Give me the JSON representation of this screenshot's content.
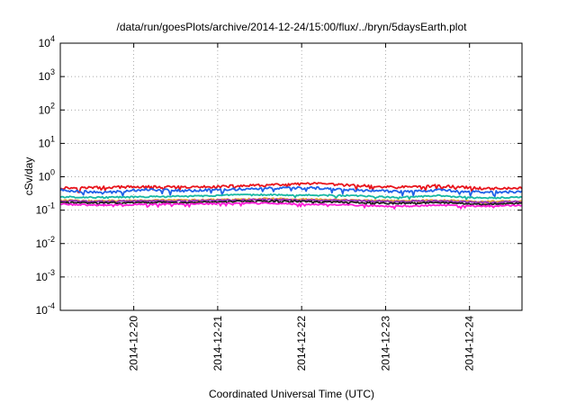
{
  "chart_data": {
    "type": "line",
    "title": "/data/run/goesPlots/archive/2014-12-24/15:00/flux/../bryn/5daysEarth.plot",
    "xlabel": "Coordinated Universal Time (UTC)",
    "ylabel": "cSv/day",
    "yscale": "log",
    "ylim": [
      0.0001,
      10000
    ],
    "y_ticks": [
      {
        "value": 0.0001,
        "base": "10",
        "exp": "-4"
      },
      {
        "value": 0.001,
        "base": "10",
        "exp": "-3"
      },
      {
        "value": 0.01,
        "base": "10",
        "exp": "-2"
      },
      {
        "value": 0.1,
        "base": "10",
        "exp": "-1"
      },
      {
        "value": 1,
        "base": "10",
        "exp": "0"
      },
      {
        "value": 10,
        "base": "10",
        "exp": "1"
      },
      {
        "value": 100,
        "base": "10",
        "exp": "2"
      },
      {
        "value": 1000,
        "base": "10",
        "exp": "3"
      },
      {
        "value": 10000,
        "base": "10",
        "exp": "4"
      }
    ],
    "xlim": [
      "2014-12-19T03:00",
      "2014-12-24T15:00"
    ],
    "x_ticks": [
      {
        "value": "2014-12-20T00:00",
        "label": "2014-12-20"
      },
      {
        "value": "2014-12-21T00:00",
        "label": "2014-12-21"
      },
      {
        "value": "2014-12-22T00:00",
        "label": "2014-12-22"
      },
      {
        "value": "2014-12-23T00:00",
        "label": "2014-12-23"
      },
      {
        "value": "2014-12-24T00:00",
        "label": "2014-12-24"
      }
    ],
    "grid": true,
    "legend": "none",
    "x": [
      "2014-12-19T03:00",
      "2014-12-19T15:00",
      "2014-12-20T03:00",
      "2014-12-20T15:00",
      "2014-12-21T03:00",
      "2014-12-21T15:00",
      "2014-12-22T03:00",
      "2014-12-22T15:00",
      "2014-12-23T03:00",
      "2014-12-23T15:00",
      "2014-12-24T03:00",
      "2014-12-24T15:00"
    ],
    "series": [
      {
        "color": "#e8141c",
        "values": [
          0.46,
          0.48,
          0.5,
          0.48,
          0.52,
          0.56,
          0.62,
          0.55,
          0.48,
          0.54,
          0.45,
          0.45
        ]
      },
      {
        "color": "#1f62e8",
        "values": [
          0.4,
          0.33,
          0.42,
          0.38,
          0.42,
          0.45,
          0.46,
          0.4,
          0.36,
          0.4,
          0.35,
          0.35
        ]
      },
      {
        "color": "#17b8a2",
        "values": [
          0.25,
          0.24,
          0.25,
          0.26,
          0.28,
          0.29,
          0.28,
          0.27,
          0.24,
          0.27,
          0.23,
          0.24
        ]
      },
      {
        "color": "#e8a33a",
        "values": [
          0.2,
          0.19,
          0.2,
          0.2,
          0.21,
          0.22,
          0.21,
          0.2,
          0.19,
          0.2,
          0.18,
          0.19
        ]
      },
      {
        "color": "#9a2db8",
        "values": [
          0.19,
          0.18,
          0.19,
          0.19,
          0.2,
          0.21,
          0.2,
          0.19,
          0.18,
          0.19,
          0.17,
          0.18
        ]
      },
      {
        "color": "#222222",
        "values": [
          0.17,
          0.165,
          0.17,
          0.17,
          0.18,
          0.19,
          0.18,
          0.17,
          0.16,
          0.17,
          0.15,
          0.16
        ]
      },
      {
        "color": "#ff1ed8",
        "values": [
          0.15,
          0.14,
          0.15,
          0.15,
          0.16,
          0.16,
          0.15,
          0.14,
          0.13,
          0.14,
          0.13,
          0.14
        ]
      }
    ]
  }
}
